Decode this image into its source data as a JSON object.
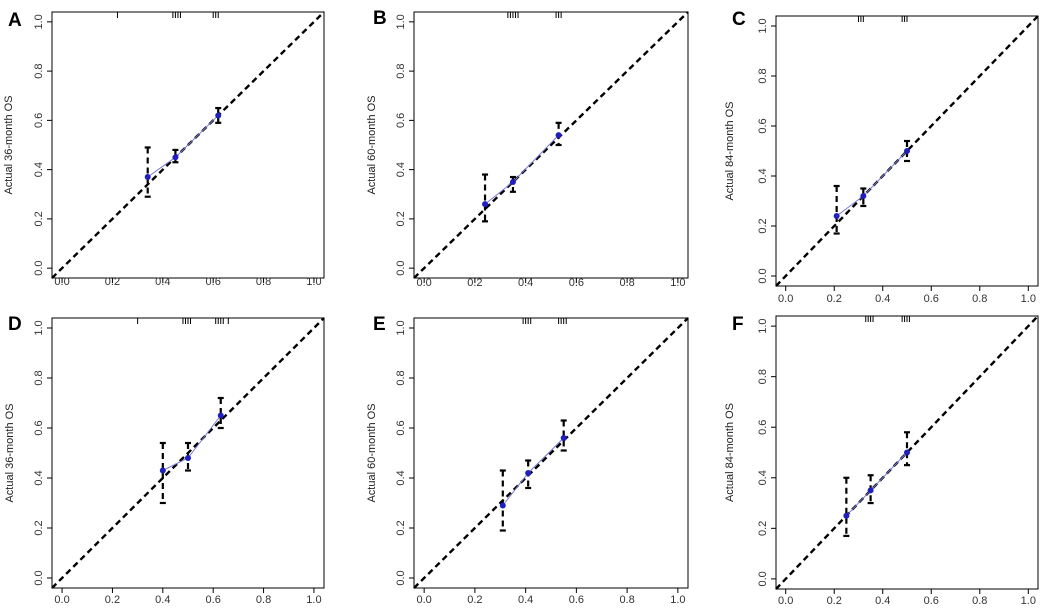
{
  "figure": {
    "panels": [
      "A",
      "B",
      "C",
      "D",
      "E",
      "F"
    ]
  },
  "chart_data": [
    {
      "panel": "A",
      "type": "scatter",
      "ylabel": "Actual 36-month OS",
      "xlim": [
        0,
        1
      ],
      "ylim": [
        0,
        1
      ],
      "xticks": [
        "0.0",
        "0.2",
        "0.4",
        "0.6",
        "0.8",
        "1.0"
      ],
      "yticks": [
        "0.0",
        "0.2",
        "0.4",
        "0.6",
        "0.8",
        "1.0"
      ],
      "reference_line": "diagonal dashed",
      "points": [
        {
          "x": 0.34,
          "y": 0.37,
          "lo": 0.29,
          "hi": 0.49
        },
        {
          "x": 0.45,
          "y": 0.45,
          "lo": 0.43,
          "hi": 0.48
        },
        {
          "x": 0.62,
          "y": 0.62,
          "lo": 0.59,
          "hi": 0.65
        }
      ],
      "rug": [
        0.22,
        0.44,
        0.45,
        0.46,
        0.47,
        0.6,
        0.61,
        0.62
      ]
    },
    {
      "panel": "B",
      "type": "scatter",
      "ylabel": "Actual 60-month OS",
      "xlim": [
        0,
        1
      ],
      "ylim": [
        0,
        1
      ],
      "xticks": [
        "0.0",
        "0.2",
        "0.4",
        "0.6",
        "0.8",
        "1.0"
      ],
      "yticks": [
        "0.0",
        "0.2",
        "0.4",
        "0.6",
        "0.8",
        "1.0"
      ],
      "reference_line": "diagonal dashed",
      "points": [
        {
          "x": 0.24,
          "y": 0.26,
          "lo": 0.19,
          "hi": 0.38
        },
        {
          "x": 0.35,
          "y": 0.35,
          "lo": 0.31,
          "hi": 0.37
        },
        {
          "x": 0.53,
          "y": 0.54,
          "lo": 0.5,
          "hi": 0.59
        }
      ],
      "rug": [
        0.33,
        0.34,
        0.35,
        0.36,
        0.37,
        0.52,
        0.53,
        0.54
      ]
    },
    {
      "panel": "C",
      "type": "scatter",
      "ylabel": "Actual 84-month OS",
      "xlim": [
        0,
        1
      ],
      "ylim": [
        0,
        1
      ],
      "xticks": [
        "0.0",
        "0.2",
        "0.4",
        "0.6",
        "0.8",
        "1.0"
      ],
      "yticks": [
        "0.0",
        "0.2",
        "0.4",
        "0.6",
        "0.8",
        "1.0"
      ],
      "reference_line": "diagonal dashed",
      "points": [
        {
          "x": 0.21,
          "y": 0.24,
          "lo": 0.17,
          "hi": 0.36
        },
        {
          "x": 0.32,
          "y": 0.32,
          "lo": 0.28,
          "hi": 0.35
        },
        {
          "x": 0.5,
          "y": 0.5,
          "lo": 0.46,
          "hi": 0.54
        }
      ],
      "rug": [
        0.3,
        0.31,
        0.32,
        0.48,
        0.49,
        0.5
      ]
    },
    {
      "panel": "D",
      "type": "scatter",
      "ylabel": "Actual 36-month OS",
      "xlim": [
        0,
        1
      ],
      "ylim": [
        0,
        1
      ],
      "xticks": [
        "0.0",
        "0.2",
        "0.4",
        "0.6",
        "0.8",
        "1.0"
      ],
      "yticks": [
        "0.0",
        "0.2",
        "0.4",
        "0.6",
        "0.8",
        "1.0"
      ],
      "reference_line": "diagonal dashed",
      "points": [
        {
          "x": 0.4,
          "y": 0.43,
          "lo": 0.3,
          "hi": 0.54
        },
        {
          "x": 0.5,
          "y": 0.48,
          "lo": 0.43,
          "hi": 0.54
        },
        {
          "x": 0.63,
          "y": 0.65,
          "lo": 0.6,
          "hi": 0.72
        }
      ],
      "rug": [
        0.3,
        0.48,
        0.49,
        0.5,
        0.51,
        0.61,
        0.62,
        0.63,
        0.64,
        0.66
      ]
    },
    {
      "panel": "E",
      "type": "scatter",
      "ylabel": "Actual 60-month OS",
      "xlim": [
        0,
        1
      ],
      "ylim": [
        0,
        1
      ],
      "xticks": [
        "0.0",
        "0.2",
        "0.4",
        "0.6",
        "0.8",
        "1.0"
      ],
      "yticks": [
        "0.0",
        "0.2",
        "0.4",
        "0.6",
        "0.8",
        "1.0"
      ],
      "reference_line": "diagonal dashed",
      "points": [
        {
          "x": 0.31,
          "y": 0.29,
          "lo": 0.19,
          "hi": 0.43
        },
        {
          "x": 0.41,
          "y": 0.42,
          "lo": 0.36,
          "hi": 0.47
        },
        {
          "x": 0.55,
          "y": 0.56,
          "lo": 0.51,
          "hi": 0.63
        }
      ],
      "rug": [
        0.39,
        0.4,
        0.41,
        0.42,
        0.53,
        0.54,
        0.55,
        0.56
      ]
    },
    {
      "panel": "F",
      "type": "scatter",
      "ylabel": "Actual 84-month OS",
      "xlim": [
        0,
        1
      ],
      "ylim": [
        0,
        1
      ],
      "xticks": [
        "0.0",
        "0.2",
        "0.4",
        "0.6",
        "0.8",
        "1.0"
      ],
      "yticks": [
        "0.0",
        "0.2",
        "0.4",
        "0.6",
        "0.8",
        "1.0"
      ],
      "reference_line": "diagonal dashed",
      "points": [
        {
          "x": 0.25,
          "y": 0.25,
          "lo": 0.17,
          "hi": 0.4
        },
        {
          "x": 0.35,
          "y": 0.35,
          "lo": 0.3,
          "hi": 0.41
        },
        {
          "x": 0.5,
          "y": 0.5,
          "lo": 0.45,
          "hi": 0.58
        }
      ],
      "rug": [
        0.33,
        0.34,
        0.35,
        0.36,
        0.48,
        0.49,
        0.5,
        0.51
      ]
    }
  ]
}
